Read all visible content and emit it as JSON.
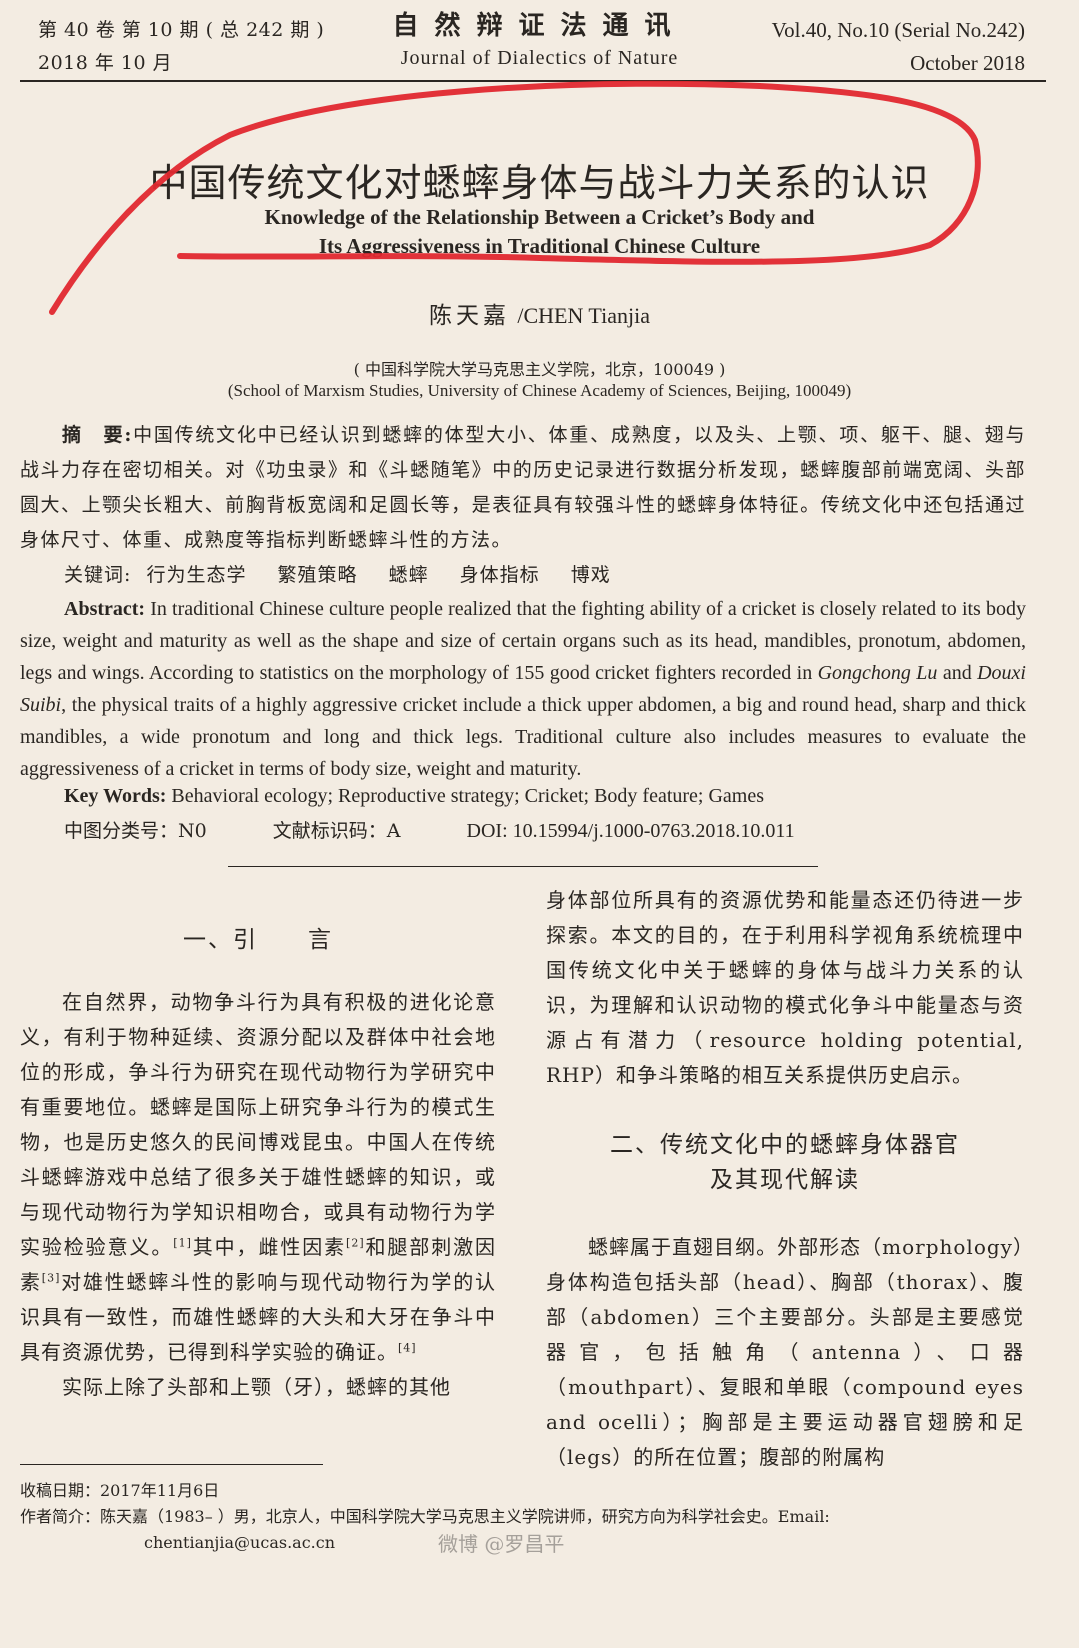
{
  "header": {
    "left_line1": "第 40 卷 第 10 期 ( 总 242 期 )",
    "left_line2": "2018 年 10 月",
    "journal_cn": "自然辩证法通讯",
    "journal_en": "Journal of Dialectics of Nature",
    "right_line1": "Vol.40, No.10 (Serial No.242)",
    "right_line2": "October 2018"
  },
  "article": {
    "title_cn": "中国传统文化对蟋蟀身体与战斗力关系的认识",
    "title_en_line1": "Knowledge of the Relationship Between a Cricket’s Body and",
    "title_en_line2": "Its Aggressiveness in Traditional Chinese Culture",
    "author_cn": "陈天嘉",
    "author_en": "/CHEN Tianjia",
    "affiliation_cn": "( 中国科学院大学马克思主义学院，北京，100049 )",
    "affiliation_en": "(School of Marxism Studies, University of Chinese Academy of Sciences, Beijing, 100049)"
  },
  "abstract_cn": {
    "label": "摘　要:",
    "text": "中国传统文化中已经认识到蟋蟀的体型大小、体重、成熟度，以及头、上颚、项、躯干、腿、翅与战斗力存在密切相关。对《功虫录》和《斗蟋随笔》中的历史记录进行数据分析发现，蟋蟀腹部前端宽阔、头部圆大、上颚尖长粗大、前胸背板宽阔和足圆长等，是表征具有较强斗性的蟋蟀身体特征。传统文化中还包括通过身体尺寸、体重、成熟度等指标判断蟋蟀斗性的方法。"
  },
  "keywords_cn": {
    "label": "关键词:",
    "terms": [
      "行为生态学",
      "繁殖策略",
      "蟋蟀",
      "身体指标",
      "博戏"
    ]
  },
  "abstract_en": {
    "label": "Abstract:",
    "part1": " In traditional Chinese culture people realized that the fighting ability of a cricket is closely related to its body size, weight and maturity as well as the shape and size of certain organs such as its head, mandibles, pronotum, abdomen, legs and wings. According to statistics on the morphology of 155 good cricket fighters recorded in ",
    "book1": "Gongchong Lu",
    "and": " and ",
    "book2": "Douxi Suibi",
    "part2": ", the physical traits of a highly aggressive cricket include a thick upper abdomen, a big and round head, sharp and thick mandibles, a wide pronotum and long and thick legs. Traditional culture also includes measures to evaluate the aggressiveness of a cricket in terms of body size, weight and maturity."
  },
  "keywords_en": {
    "label": "Key Words:",
    "text": " Behavioral ecology; Reproductive strategy; Cricket; Body feature; Games"
  },
  "classification": {
    "clc": "中图分类号：N0",
    "doc_code": "文献标识码：A",
    "doi": "DOI: 10.15994/j.1000-0763.2018.10.011"
  },
  "section1": {
    "heading": "一、引　　言",
    "p1_a": "在自然界，动物争斗行为具有积极的进化论意义，有利于物种延续、资源分配以及群体中社会地位的形成，争斗行为研究在现代动物行为学研究中有重要地位。蟋蟀是国际上研究争斗行为的模式生物，也是历史悠久的民间博戏昆虫。中国人在传统斗蟋蟀游戏中总结了很多关于雄性蟋蟀的知识，或与现代动物行为学知识相吻合，或具有动物行为学实验检验意义。",
    "ref1": "[1]",
    "p1_b": "其中，雌性因素",
    "ref2": "[2]",
    "p1_c": "和腿部刺激因素",
    "ref3": "[3]",
    "p1_d": "对雄性蟋蟀斗性的影响与现代动物行为学的认识具有一致性，而雄性蟋蟀的大头和大牙在争斗中具有资源优势，已得到科学实验的确证。",
    "ref4": "[4]",
    "p2": "实际上除了头部和上颚（牙），蟋蟀的其他"
  },
  "right_column": {
    "p_cont": "身体部位所具有的资源优势和能量态还仍待进一步探索。本文的目的，在于利用科学视角系统梳理中国传统文化中关于蟋蟀的身体与战斗力关系的认识，为理解和认识动物的模式化争斗中能量态与资源占有潜力（resource holding potential, RHP）和争斗策略的相互关系提供历史启示。",
    "section2_line1": "二、传统文化中的蟋蟀身体器官",
    "section2_line2": "及其现代解读",
    "p3": "蟋蟀属于直翅目纲。外部形态（morphology）身体构造包括头部（head）、胸部（thorax）、腹部（abdomen）三个主要部分。头部是主要感觉器官，包括触角（antenna）、口器（mouthpart）、复眼和单眼（compound eyes and ocelli）；胸部是主要运动器官翅膀和足（legs）的所在位置；腹部的附属构"
  },
  "footnote": {
    "received": "收稿日期：2017年11月6日",
    "bio": "作者简介：陈天嘉（1983– ）男，北京人，中国科学院大学马克思主义学院讲师，研究方向为科学社会史。Email:",
    "email": "chentianjia@ucas.ac.cn"
  },
  "watermark": "微博 @罗昌平",
  "colors": {
    "paper": "#f3ece2",
    "ink": "#2a2622",
    "marker": "#e0282f"
  }
}
